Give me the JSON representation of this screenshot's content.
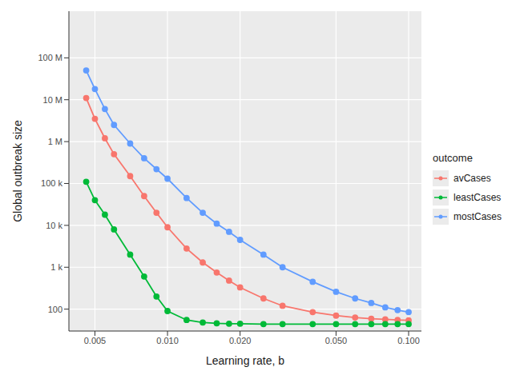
{
  "chart_data": {
    "type": "line",
    "x_label": "Learning rate, b",
    "y_label": "Global outbreak size",
    "legend_title": "outcome",
    "log": true,
    "grid": true,
    "legend": "right",
    "marker": "circle",
    "x": [
      0.0046,
      0.005,
      0.0055,
      0.006,
      0.007,
      0.008,
      0.009,
      0.01,
      0.012,
      0.014,
      0.016,
      0.018,
      0.02,
      0.025,
      0.03,
      0.04,
      0.05,
      0.06,
      0.07,
      0.08,
      0.09,
      0.1
    ],
    "xlim": [
      0.0039,
      0.113
    ],
    "xticks": [
      0.005,
      {
        "value": 0.01,
        "label": "0.010"
      },
      {
        "value": 0.02,
        "label": "0.020"
      },
      {
        "value": 0.05,
        "label": "0.050"
      },
      {
        "value": 0.1,
        "label": "0.100"
      }
    ],
    "ylim": [
      30,
      1300000000
    ],
    "yticks": [
      100,
      {
        "value": 1000,
        "label": "1 k"
      },
      {
        "value": 10000,
        "label": "10 k"
      },
      {
        "value": 100000,
        "label": "100 k"
      },
      {
        "value": 1000000,
        "label": "1 M"
      },
      {
        "value": 10000000,
        "label": "10 M"
      },
      {
        "value": 100000000,
        "label": "100 M"
      }
    ],
    "series": [
      {
        "name": "avCases",
        "color": "#F8766D",
        "values": [
          11000000,
          3500000,
          1200000,
          500000,
          150000,
          50000,
          20000,
          9000,
          2800,
          1300,
          750,
          480,
          330,
          180,
          120,
          85,
          70,
          63,
          59,
          57,
          55,
          54
        ]
      },
      {
        "name": "leastCases",
        "color": "#00BA38",
        "values": [
          110000,
          40000,
          18000,
          8000,
          2000,
          600,
          200,
          90,
          55,
          48,
          46,
          45,
          45,
          44,
          44,
          44,
          44,
          44,
          44,
          44,
          44,
          44
        ]
      },
      {
        "name": "mostCases",
        "color": "#619CFF",
        "values": [
          50000000,
          18000000,
          6000000,
          2500000,
          900000,
          400000,
          220000,
          130000,
          45000,
          20000,
          11000,
          7000,
          4500,
          2000,
          1000,
          450,
          260,
          180,
          140,
          110,
          95,
          85
        ]
      }
    ]
  }
}
